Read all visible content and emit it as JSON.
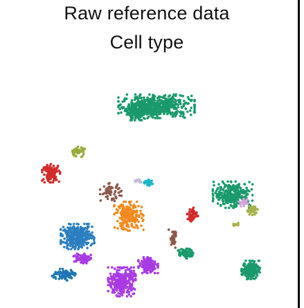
{
  "chart_data": {
    "type": "scatter",
    "title": "Raw reference data",
    "subtitle": "Cell type",
    "xlabel": "",
    "ylabel": "",
    "grid": false,
    "legend": "none",
    "x_range": [
      0,
      100
    ],
    "y_range": [
      0,
      100
    ],
    "clusters": [
      {
        "id": "green-top-large",
        "color": "#1a9a6c",
        "cx": 51.5,
        "cy": 83.0,
        "rx": 12.5,
        "ry": 4.5,
        "n": 520
      },
      {
        "id": "green-top-left-lobe",
        "color": "#1a9a6c",
        "cx": 44.5,
        "cy": 80.5,
        "rx": 4.0,
        "ry": 3.0,
        "n": 160
      },
      {
        "id": "olive-top",
        "color": "#9aab3e",
        "cx": 23.0,
        "cy": 64.0,
        "rx": 2.6,
        "ry": 2.0,
        "n": 45
      },
      {
        "id": "red-left",
        "color": "#d42a2a",
        "cx": 13.5,
        "cy": 55.0,
        "rx": 3.0,
        "ry": 3.5,
        "n": 120
      },
      {
        "id": "green-right",
        "color": "#1a9a6c",
        "cx": 79.0,
        "cy": 46.0,
        "rx": 6.5,
        "ry": 5.0,
        "n": 300
      },
      {
        "id": "olive-right",
        "color": "#a9b24a",
        "cx": 86.0,
        "cy": 39.5,
        "rx": 2.0,
        "ry": 1.8,
        "n": 40
      },
      {
        "id": "lilac-right",
        "color": "#d9a3e0",
        "cx": 83.0,
        "cy": 42.5,
        "rx": 1.8,
        "ry": 1.5,
        "n": 20
      },
      {
        "id": "olive-right-small",
        "color": "#a9b24a",
        "cx": 80.0,
        "cy": 33.5,
        "rx": 1.2,
        "ry": 0.8,
        "n": 12
      },
      {
        "id": "brown",
        "color": "#8c5a4a",
        "cx": 35.0,
        "cy": 47.0,
        "rx": 3.5,
        "ry": 3.5,
        "n": 60
      },
      {
        "id": "cyan",
        "color": "#1cb8c8",
        "cx": 48.5,
        "cy": 51.0,
        "rx": 2.4,
        "ry": 1.2,
        "n": 30
      },
      {
        "id": "lilac-small",
        "color": "#c8b8d8",
        "cx": 45.0,
        "cy": 51.5,
        "rx": 1.2,
        "ry": 0.8,
        "n": 12
      },
      {
        "id": "orange",
        "color": "#f28a1e",
        "cx": 41.5,
        "cy": 37.0,
        "rx": 4.8,
        "ry": 5.5,
        "n": 220
      },
      {
        "id": "red-mid",
        "color": "#d42a2a",
        "cx": 64.5,
        "cy": 37.5,
        "rx": 1.8,
        "ry": 2.8,
        "n": 55
      },
      {
        "id": "blue-large",
        "color": "#2b7fc0",
        "cx": 23.0,
        "cy": 28.5,
        "rx": 5.5,
        "ry": 4.8,
        "n": 330
      },
      {
        "id": "magenta-mid",
        "color": "#a93be3",
        "cx": 24.5,
        "cy": 19.5,
        "rx": 3.0,
        "ry": 2.2,
        "n": 90
      },
      {
        "id": "teal-blue",
        "color": "#1f77b4",
        "cx": 18.0,
        "cy": 12.5,
        "rx": 4.0,
        "ry": 2.2,
        "n": 90
      },
      {
        "id": "magenta-large",
        "color": "#a93be3",
        "cx": 39.0,
        "cy": 9.5,
        "rx": 4.5,
        "ry": 5.5,
        "n": 320
      },
      {
        "id": "magenta-right-lobe",
        "color": "#a93be3",
        "cx": 48.5,
        "cy": 16.5,
        "rx": 3.2,
        "ry": 3.0,
        "n": 150
      },
      {
        "id": "brown-diagonal",
        "color": "#8c5a4a",
        "cx": 57.5,
        "cy": 27.5,
        "rx": 1.5,
        "ry": 3.5,
        "n": 35
      },
      {
        "id": "green-small-mid",
        "color": "#1a9a6c",
        "cx": 62.0,
        "cy": 21.5,
        "rx": 2.5,
        "ry": 2.0,
        "n": 60
      },
      {
        "id": "green-bottom-right",
        "color": "#1a9a6c",
        "cx": 85.5,
        "cy": 14.5,
        "rx": 3.0,
        "ry": 3.5,
        "n": 160
      }
    ]
  }
}
